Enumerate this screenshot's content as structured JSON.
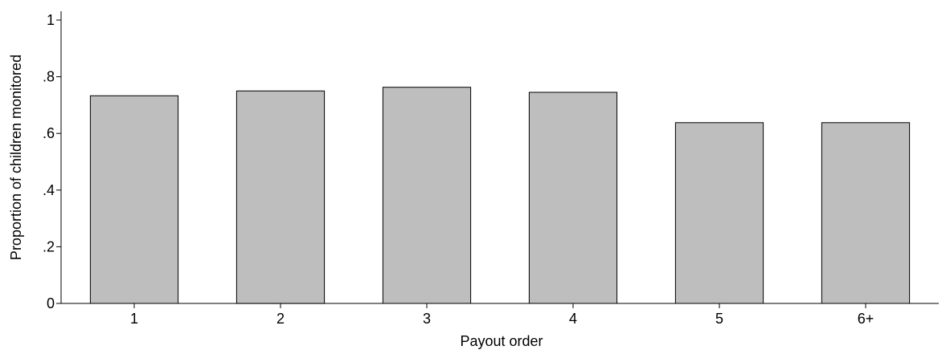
{
  "chart_data": {
    "type": "bar",
    "title": "",
    "xlabel": "Payout order",
    "ylabel": "Proportion of children monitored",
    "categories": [
      "1",
      "2",
      "3",
      "4",
      "5",
      "6+"
    ],
    "values": [
      0.733,
      0.75,
      0.763,
      0.745,
      0.638,
      0.638
    ],
    "ylim": [
      0,
      1
    ],
    "yticks": [
      0,
      0.2,
      0.4,
      0.6,
      0.8,
      1
    ],
    "ytick_labels": [
      "0",
      ".2",
      ".4",
      ".6",
      ".8",
      "1"
    ],
    "grid": false,
    "legend": "none",
    "bar_color": "#bebebe",
    "edge_color": "#000000"
  }
}
